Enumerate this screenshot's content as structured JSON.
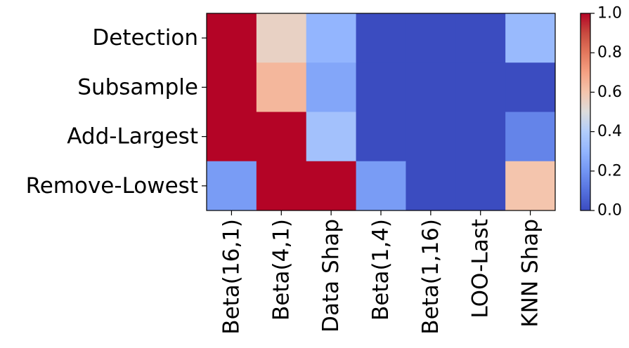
{
  "chart_data": {
    "type": "heatmap",
    "rows": [
      "Detection",
      "Subsample",
      "Add-Largest",
      "Remove-Lowest"
    ],
    "columns": [
      "Beta(16,1)",
      "Beta(4,1)",
      "Data Shap",
      "Beta(1,4)",
      "Beta(1,16)",
      "LOO-Last",
      "KNN Shap"
    ],
    "values": [
      [
        1.0,
        0.55,
        0.3,
        0.0,
        0.0,
        0.0,
        0.32
      ],
      [
        1.0,
        0.64,
        0.25,
        0.0,
        0.0,
        0.0,
        0.0
      ],
      [
        1.0,
        1.0,
        0.35,
        0.0,
        0.0,
        0.0,
        0.15
      ],
      [
        0.22,
        1.0,
        1.0,
        0.22,
        0.0,
        0.0,
        0.6
      ]
    ],
    "colormap": "coolwarm",
    "vmin": 0.0,
    "vmax": 1.0,
    "colorbar": {
      "ticks": [
        0.0,
        0.2,
        0.4,
        0.6,
        0.8,
        1.0
      ],
      "tick_labels": [
        "0.0",
        "0.2",
        "0.4",
        "0.6",
        "0.8",
        "1.0"
      ]
    },
    "title": "",
    "xlabel": "",
    "ylabel": "",
    "grid": false
  }
}
